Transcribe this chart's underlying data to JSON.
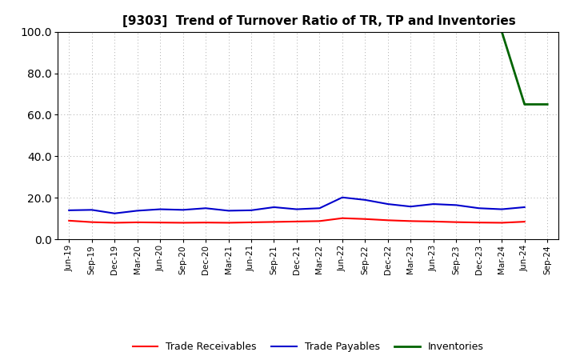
{
  "title": "[9303]  Trend of Turnover Ratio of TR, TP and Inventories",
  "xlabels": [
    "Jun-19",
    "Sep-19",
    "Dec-19",
    "Mar-20",
    "Jun-20",
    "Sep-20",
    "Dec-20",
    "Mar-21",
    "Jun-21",
    "Sep-21",
    "Dec-21",
    "Mar-22",
    "Jun-22",
    "Sep-22",
    "Dec-22",
    "Mar-23",
    "Jun-23",
    "Sep-23",
    "Dec-23",
    "Mar-24",
    "Jun-24",
    "Sep-24"
  ],
  "ylim": [
    0.0,
    100.0
  ],
  "yticks": [
    0.0,
    20.0,
    40.0,
    60.0,
    80.0,
    100.0
  ],
  "trade_receivables": [
    9.0,
    8.3,
    8.0,
    8.2,
    8.1,
    8.0,
    8.1,
    8.0,
    8.2,
    8.4,
    8.6,
    8.8,
    10.2,
    9.8,
    9.2,
    8.8,
    8.6,
    8.3,
    8.1,
    8.0,
    8.5,
    null
  ],
  "trade_payables": [
    14.0,
    14.2,
    12.5,
    13.8,
    14.5,
    14.2,
    15.0,
    13.8,
    14.0,
    15.5,
    14.5,
    15.0,
    20.2,
    19.0,
    17.0,
    15.8,
    17.0,
    16.5,
    15.0,
    14.5,
    15.5,
    null
  ],
  "inventories": [
    null,
    null,
    null,
    null,
    null,
    null,
    null,
    null,
    null,
    null,
    null,
    null,
    null,
    null,
    null,
    null,
    null,
    null,
    null,
    100.0,
    65.0,
    65.0
  ],
  "tr_color": "#ff0000",
  "tp_color": "#0000cd",
  "inv_color": "#006400",
  "background_color": "#ffffff",
  "grid_color": "#aaaaaa",
  "legend_labels": [
    "Trade Receivables",
    "Trade Payables",
    "Inventories"
  ],
  "title_fontsize": 11,
  "tick_fontsize": 7.5,
  "legend_fontsize": 9
}
